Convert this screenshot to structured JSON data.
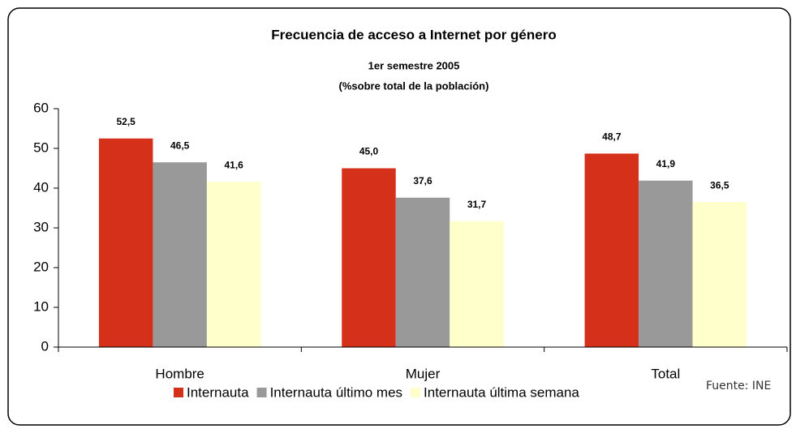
{
  "chart_data": {
    "type": "bar",
    "title": "Frecuencia de acceso a Internet por género",
    "subtitle": [
      "1er semestre 2005",
      "(%sobre total de la población)"
    ],
    "source": "Fuente: INE",
    "categories": [
      "Hombre",
      "Mujer",
      "Total"
    ],
    "series": [
      {
        "name": "Internauta",
        "color": "#d4301a",
        "values": [
          52.5,
          45.0,
          48.7
        ],
        "value_labels": [
          "52,5",
          "45,0",
          "48,7"
        ]
      },
      {
        "name": "Internauta último mes",
        "color": "#999999",
        "values": [
          46.5,
          37.6,
          41.9
        ],
        "value_labels": [
          "46,5",
          "37,6",
          "41,9"
        ]
      },
      {
        "name": "Internauta última semana",
        "color": "#ffffcc",
        "values": [
          41.6,
          31.7,
          36.5
        ],
        "value_labels": [
          "41,6",
          "31,7",
          "36,5"
        ]
      }
    ],
    "ylim": [
      0,
      60
    ],
    "yticks": [
      0,
      10,
      20,
      30,
      40,
      50,
      60
    ],
    "grid": false,
    "legend": "bottom"
  }
}
